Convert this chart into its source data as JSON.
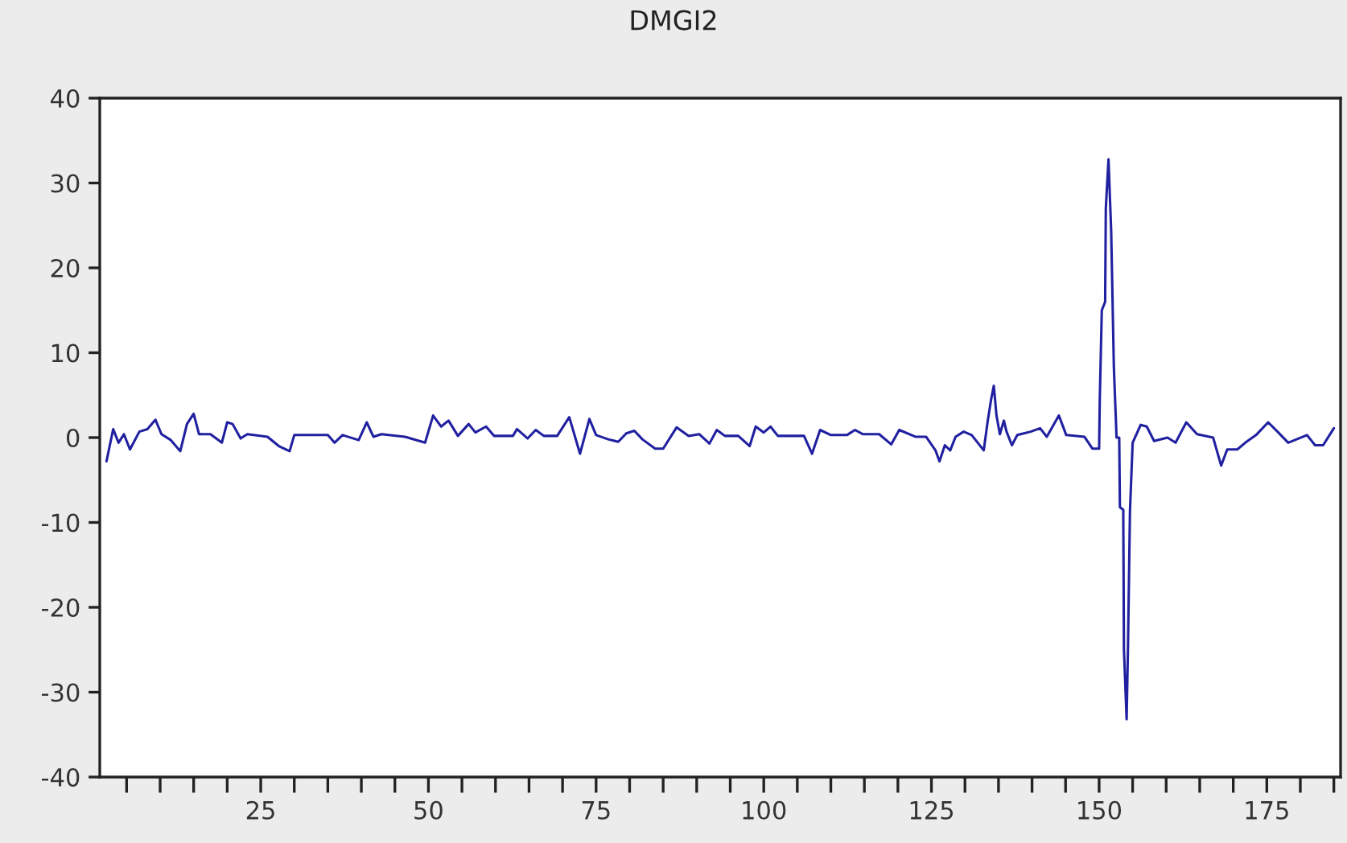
{
  "chart_data": {
    "type": "line",
    "title": "DMGI2",
    "xlim": [
      1,
      186
    ],
    "ylim": [
      -40,
      40
    ],
    "xticks": [
      {
        "value": 5,
        "label": null
      },
      {
        "value": 10,
        "label": null
      },
      {
        "value": 15,
        "label": null
      },
      {
        "value": 20,
        "label": null
      },
      25,
      {
        "value": 30,
        "label": null
      },
      {
        "value": 35,
        "label": null
      },
      {
        "value": 40,
        "label": null
      },
      {
        "value": 45,
        "label": null
      },
      50,
      {
        "value": 55,
        "label": null
      },
      {
        "value": 60,
        "label": null
      },
      {
        "value": 65,
        "label": null
      },
      {
        "value": 70,
        "label": null
      },
      75,
      {
        "value": 80,
        "label": null
      },
      {
        "value": 85,
        "label": null
      },
      {
        "value": 90,
        "label": null
      },
      {
        "value": 95,
        "label": null
      },
      100,
      {
        "value": 105,
        "label": null
      },
      {
        "value": 110,
        "label": null
      },
      {
        "value": 115,
        "label": null
      },
      {
        "value": 120,
        "label": null
      },
      125,
      {
        "value": 130,
        "label": null
      },
      {
        "value": 135,
        "label": null
      },
      {
        "value": 140,
        "label": null
      },
      {
        "value": 145,
        "label": null
      },
      150,
      {
        "value": 155,
        "label": null
      },
      {
        "value": 160,
        "label": null
      },
      {
        "value": 165,
        "label": null
      },
      {
        "value": 170,
        "label": null
      },
      175,
      {
        "value": 180,
        "label": null
      },
      {
        "value": 185,
        "label": null
      }
    ],
    "yticks": [
      -40,
      -30,
      -20,
      -10,
      0,
      10,
      20,
      30,
      40
    ],
    "grid": false,
    "legend": false,
    "marker": "none",
    "line_style": "solid",
    "series": [
      {
        "color": "#2020a0",
        "x": [
          2,
          3,
          3.8,
          4.6,
          5.5,
          6.9,
          8.1,
          9.3,
          10.2,
          11.6,
          13,
          14,
          15,
          15.8,
          17.5,
          19.2,
          20,
          20.8,
          22,
          23,
          26,
          27.7,
          29.3,
          30,
          35,
          36,
          37.2,
          39.6,
          40.8,
          41.8,
          43,
          46.5,
          49.5,
          50.7,
          51.9,
          53,
          54.4,
          56,
          57,
          58.6,
          59.8,
          62.6,
          63.2,
          64.8,
          66,
          67.2,
          69.2,
          71,
          72.6,
          74,
          75,
          76.8,
          78.3,
          79.5,
          80.7,
          81.9,
          83.8,
          85,
          87,
          88.8,
          90.4,
          91.9,
          93,
          94.2,
          96.2,
          97.9,
          98.8,
          100,
          101,
          102.1,
          106,
          107.2,
          108.4,
          110,
          112.4,
          113.6,
          114.8,
          117.2,
          119,
          120.2,
          122.6,
          124.2,
          125.6,
          126.2,
          127,
          127.8,
          128.6,
          129.8,
          131,
          132.8,
          133.4,
          133.9,
          134.3,
          134.7,
          135.2,
          135.8,
          136.2,
          137,
          137.8,
          139.8,
          141.2,
          142.2,
          144,
          145.1,
          147.8,
          149,
          150,
          150.1,
          150.4,
          150.9,
          151,
          151.4,
          151.8,
          152.2,
          152.6,
          153,
          153.1,
          153.6,
          153.7,
          154.1,
          154.3,
          154.6,
          155,
          156.2,
          157.1,
          158.2,
          160.2,
          161.4,
          163,
          164.6,
          167,
          168.2,
          169.1,
          170.6,
          171.8,
          173.4,
          175.2,
          176.6,
          178.2,
          181,
          182.2,
          183.4,
          185
        ],
        "values": [
          -2.8,
          1,
          -0.6,
          0.4,
          -1.4,
          0.7,
          1,
          2.1,
          0.4,
          -0.3,
          -1.6,
          1.6,
          2.8,
          0.4,
          0.4,
          -0.6,
          1.8,
          1.6,
          -0.1,
          0.4,
          0.1,
          -1,
          -1.6,
          0.3,
          0.3,
          -0.6,
          0.3,
          -0.3,
          1.8,
          0.1,
          0.4,
          0.1,
          -0.6,
          2.6,
          1.3,
          2,
          0.2,
          1.6,
          0.6,
          1.3,
          0.2,
          0.2,
          1,
          -0.1,
          0.9,
          0.2,
          0.2,
          2.4,
          -1.9,
          2.2,
          0.3,
          -0.2,
          -0.5,
          0.5,
          0.8,
          -0.2,
          -1.3,
          -1.3,
          1.2,
          0.2,
          0.4,
          -0.7,
          0.9,
          0.2,
          0.2,
          -1,
          1.3,
          0.6,
          1.3,
          0.2,
          0.2,
          -1.9,
          0.9,
          0.3,
          0.3,
          0.9,
          0.4,
          0.4,
          -0.8,
          0.9,
          0.1,
          0.1,
          -1.5,
          -2.8,
          -0.9,
          -1.5,
          0.1,
          0.7,
          0.3,
          -1.5,
          2,
          4.5,
          6.1,
          2.6,
          0.4,
          2,
          0.7,
          -0.9,
          0.3,
          0.7,
          1.1,
          0.1,
          2.6,
          0.3,
          0.1,
          -1.3,
          -1.3,
          4.5,
          15,
          16,
          27,
          32.8,
          24.3,
          8.3,
          0,
          0,
          -8.2,
          -8.5,
          -24.9,
          -33.2,
          -24.9,
          -8.7,
          -0.6,
          1.5,
          1.3,
          -0.4,
          0,
          -0.6,
          1.8,
          0.4,
          0,
          -3.3,
          -1.4,
          -1.4,
          -0.6,
          0.3,
          1.8,
          0.7,
          -0.6,
          0.3,
          -0.9,
          -0.9,
          1.1
        ]
      }
    ]
  }
}
